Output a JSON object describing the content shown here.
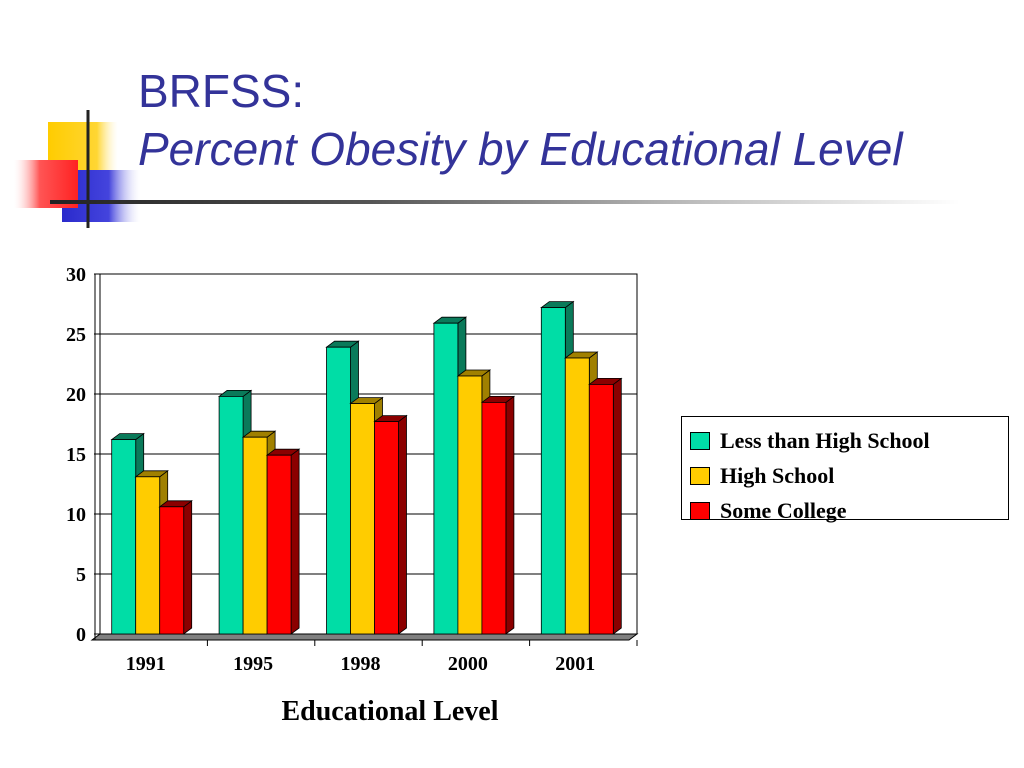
{
  "slide": {
    "title_line1": "BRFSS:",
    "title_line2": "Percent Obesity by Educational Level"
  },
  "colors": {
    "title": "#333399",
    "logo_yellow": "#ffcc00",
    "logo_red": "#ff3333",
    "logo_blue": "#3333cc"
  },
  "chart_data": {
    "type": "bar",
    "categories": [
      "1991",
      "1995",
      "1998",
      "2000",
      "2001"
    ],
    "series": [
      {
        "name": "Less than High School",
        "values": [
          16.2,
          19.8,
          23.9,
          25.9,
          27.2
        ],
        "color": "#00dda6",
        "side_color": "#0a7a5a"
      },
      {
        "name": "High School",
        "values": [
          13.1,
          16.4,
          19.2,
          21.5,
          23.0
        ],
        "color": "#ffcc00",
        "side_color": "#a08000"
      },
      {
        "name": "Some College",
        "values": [
          10.6,
          14.9,
          17.7,
          19.3,
          20.8
        ],
        "color": "#ff0000",
        "side_color": "#8b0000"
      }
    ],
    "xlabel": "Educational Level",
    "ylabel": "",
    "ylim": [
      0,
      30
    ],
    "yticks": [
      0,
      5,
      10,
      15,
      20,
      25,
      30
    ],
    "grid": true,
    "legend_position": "right"
  }
}
